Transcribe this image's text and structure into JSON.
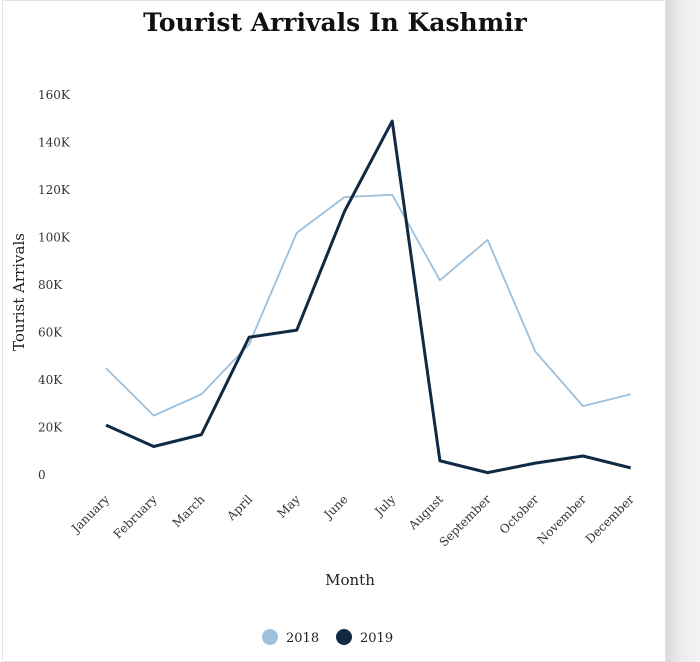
{
  "colors": {
    "series_2018": "#9dc0dc",
    "series_2019": "#102a43"
  },
  "chart_data": {
    "type": "line",
    "title": "Tourist Arrivals In Kashmir",
    "xlabel": "Month",
    "ylabel": "Tourist Arrivals",
    "ylim": [
      0,
      160000
    ],
    "yticks": [
      0,
      20000,
      40000,
      60000,
      80000,
      100000,
      120000,
      140000,
      160000
    ],
    "ytick_labels": [
      "0",
      "20K",
      "40K",
      "60K",
      "80K",
      "100K",
      "120K",
      "140K",
      "160K"
    ],
    "grid": false,
    "legend_position": "bottom",
    "categories": [
      "January",
      "February",
      "March",
      "April",
      "May",
      "June",
      "July",
      "August",
      "September",
      "October",
      "November",
      "December"
    ],
    "series": [
      {
        "name": "2018",
        "values": [
          45000,
          25000,
          34000,
          55000,
          102000,
          117000,
          118000,
          82000,
          99000,
          52000,
          29000,
          34000
        ]
      },
      {
        "name": "2019",
        "values": [
          21000,
          12000,
          17000,
          58000,
          61000,
          111000,
          149000,
          6000,
          1000,
          5000,
          8000,
          3000
        ]
      }
    ]
  }
}
